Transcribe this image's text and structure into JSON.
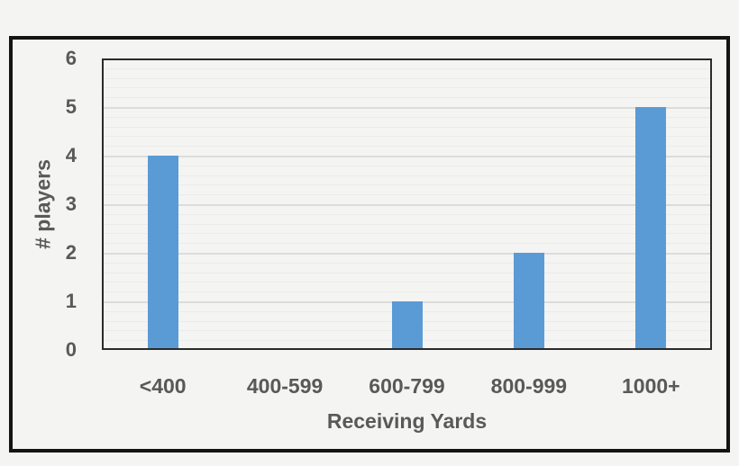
{
  "chart_data": {
    "type": "bar",
    "title": "",
    "categories": [
      "<400",
      "400-599",
      "600-799",
      "800-999",
      "1000+"
    ],
    "values": [
      4,
      0,
      1,
      2,
      5
    ],
    "xlabel": "Receiving Yards",
    "ylabel": "# players",
    "ylim": [
      0,
      6
    ],
    "ytick_labels": [
      "0",
      "1",
      "2",
      "3",
      "4",
      "5",
      "6"
    ],
    "ytick_step": 1,
    "minor_gridline_step": 0.2,
    "grid": "on",
    "legend": "none",
    "colors": {
      "bar": "#5b9bd5",
      "text": "#595959",
      "major_grid": "#dcdcdc",
      "minor_grid": "#ebebeb",
      "plot_border": "#2b2b2b",
      "frame_border": "#141414",
      "background": "#f4f4f2"
    }
  }
}
